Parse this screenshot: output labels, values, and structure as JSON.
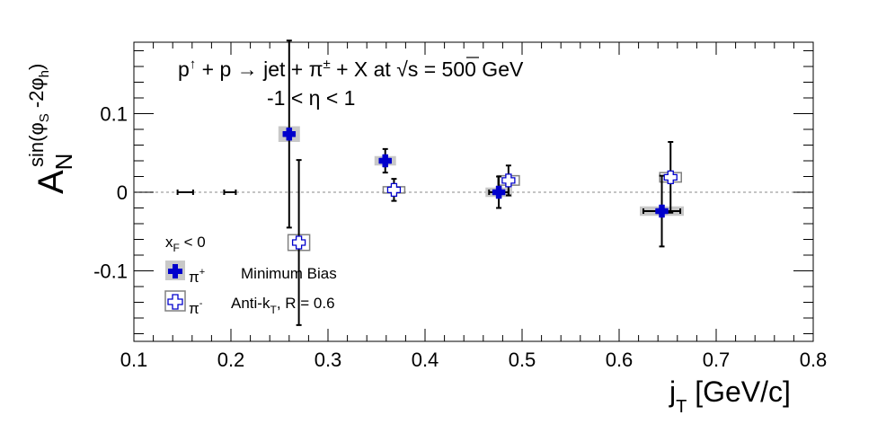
{
  "chart_data": {
    "type": "scatter",
    "title_line1": {
      "p": "p",
      "up": "↑",
      "rest": " + p → jet + π",
      "pm": "±",
      "rest2": " + X at ",
      "sqrt": "√",
      "s": "s",
      "energy": " = 500 GeV"
    },
    "title_line2": "-1 < η < 1",
    "xlabel": {
      "main": "j",
      "sub": "T",
      "rest": " [GeV/c]"
    },
    "ylabel": {
      "main": "A",
      "sub": "N",
      "sup": "sin(φ",
      "sup_sub1": "S",
      "sup_mid": " -2φ",
      "sup_sub2": "h",
      "sup_end": ")"
    },
    "xlim": [
      0.1,
      0.8
    ],
    "ylim": [
      -0.19,
      0.19
    ],
    "xticks": [
      "0.1",
      "0.2",
      "0.3",
      "0.4",
      "0.5",
      "0.6",
      "0.7",
      "0.8"
    ],
    "xtick_values": [
      0.1,
      0.2,
      0.3,
      0.4,
      0.5,
      0.6,
      0.7,
      0.8
    ],
    "yticks": [
      "-0.1",
      "0",
      "0.1"
    ],
    "ytick_values": [
      -0.1,
      0,
      0.1
    ],
    "zero_line": true,
    "legend": {
      "header": {
        "main": "x",
        "sub": "F",
        "rest": " < 0"
      },
      "minimum_bias": "Minimum Bias",
      "antikt": {
        "main": "Anti-k",
        "sub": "T",
        "rest": ", R = 0.6"
      },
      "series_labels": [
        {
          "main": "π",
          "sup": "+"
        },
        {
          "main": "π",
          "sup": "-"
        }
      ]
    },
    "series": [
      {
        "name": "π+",
        "marker": "filled-cross",
        "color": "#0000cc",
        "points": [
          {
            "x": 0.153,
            "y": 0.0,
            "xerr": 0.008,
            "yerr": 0.0,
            "sys": 0.0
          },
          {
            "x": 0.199,
            "y": 0.0,
            "xerr": 0.006,
            "yerr": 0.0,
            "sys": 0.0
          },
          {
            "x": 0.26,
            "y": 0.074,
            "xerr": 0.0,
            "yerr": 0.119,
            "sys": 0.01
          },
          {
            "x": 0.359,
            "y": 0.04,
            "xerr": 0.004,
            "yerr": 0.015,
            "sys": 0.006
          },
          {
            "x": 0.476,
            "y": 0.0,
            "xerr": 0.01,
            "yerr": 0.02,
            "sys": 0.006
          },
          {
            "x": 0.644,
            "y": -0.024,
            "xerr": 0.019,
            "yerr": 0.045,
            "sys": 0.006
          }
        ]
      },
      {
        "name": "π-",
        "marker": "open-cross",
        "color": "#0000cc",
        "points": [
          {
            "x": 0.27,
            "y": -0.064,
            "xerr": 0.0,
            "yerr": 0.105,
            "sys": 0.01
          },
          {
            "x": 0.368,
            "y": 0.003,
            "xerr": 0.004,
            "yerr": 0.014,
            "sys": 0.004
          },
          {
            "x": 0.486,
            "y": 0.015,
            "xerr": 0.003,
            "yerr": 0.019,
            "sys": 0.006
          },
          {
            "x": 0.653,
            "y": 0.019,
            "xerr": 0.0,
            "yerr": 0.045,
            "sys": 0.006
          }
        ]
      }
    ]
  }
}
